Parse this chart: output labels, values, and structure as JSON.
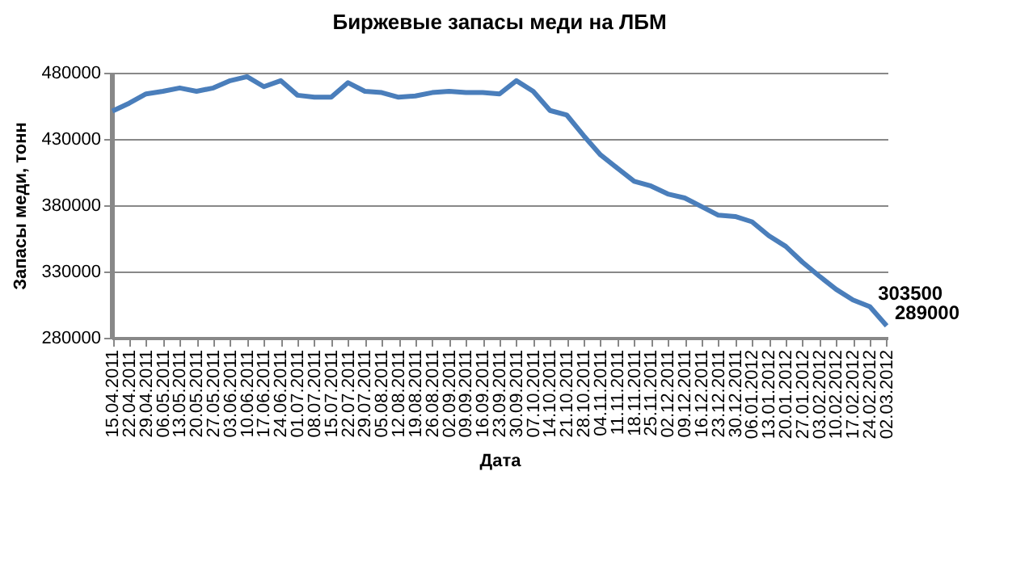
{
  "chart_data": {
    "type": "line",
    "title": "Биржевые запасы меди на ЛБМ",
    "xlabel": "Дата",
    "ylabel": "Запасы меди, тонн",
    "categories": [
      "15.04.2011",
      "22.04.2011",
      "29.04.2011",
      "06.05.2011",
      "13.05.2011",
      "20.05.2011",
      "27.05.2011",
      "03.06.2011",
      "10.06.2011",
      "17.06.2011",
      "24.06.2011",
      "01.07.2011",
      "08.07.2011",
      "15.07.2011",
      "22.07.2011",
      "29.07.2011",
      "05.08.2011",
      "12.08.2011",
      "19.08.2011",
      "26.08.2011",
      "02.09.2011",
      "09.09.2011",
      "16.09.2011",
      "23.09.2011",
      "30.09.2011",
      "07.10.2011",
      "14.10.2011",
      "21.10.2011",
      "28.10.2011",
      "04.11.2011",
      "11.11.2011",
      "18.11.2011",
      "25.11.2011",
      "02.12.2011",
      "09.12.2011",
      "16.12.2011",
      "23.12.2011",
      "30.12.2011",
      "06.01.2012",
      "13.01.2012",
      "20.01.2012",
      "27.01.2012",
      "03.02.2012",
      "10.02.2012",
      "17.02.2012",
      "24.02.2012",
      "02.03.2012"
    ],
    "series": [
      {
        "color": "#4a7ebb",
        "values": [
          451000,
          457000,
          464000,
          466000,
          468500,
          466000,
          468500,
          474000,
          477000,
          469500,
          474000,
          463000,
          461500,
          461500,
          472500,
          466000,
          465000,
          461500,
          462500,
          465000,
          466000,
          465000,
          465000,
          464000,
          474000,
          466000,
          451500,
          448000,
          432500,
          418000,
          408000,
          398000,
          394500,
          388500,
          385500,
          379000,
          372500,
          371500,
          367500,
          357000,
          349000,
          337000,
          326500,
          316500,
          308500,
          303500,
          289000
        ],
        "value_labels": [
          null,
          null,
          null,
          null,
          null,
          null,
          null,
          null,
          null,
          null,
          null,
          null,
          null,
          null,
          null,
          null,
          null,
          null,
          null,
          null,
          null,
          null,
          null,
          null,
          null,
          null,
          null,
          null,
          null,
          null,
          null,
          null,
          null,
          null,
          null,
          null,
          null,
          null,
          null,
          null,
          null,
          null,
          null,
          null,
          null,
          "303500",
          "289000"
        ]
      }
    ],
    "ylim": [
      280000,
      480000
    ],
    "yticks": [
      280000,
      330000,
      380000,
      430000,
      480000
    ],
    "grid": "y",
    "marker": "none",
    "line_style": "solid"
  }
}
